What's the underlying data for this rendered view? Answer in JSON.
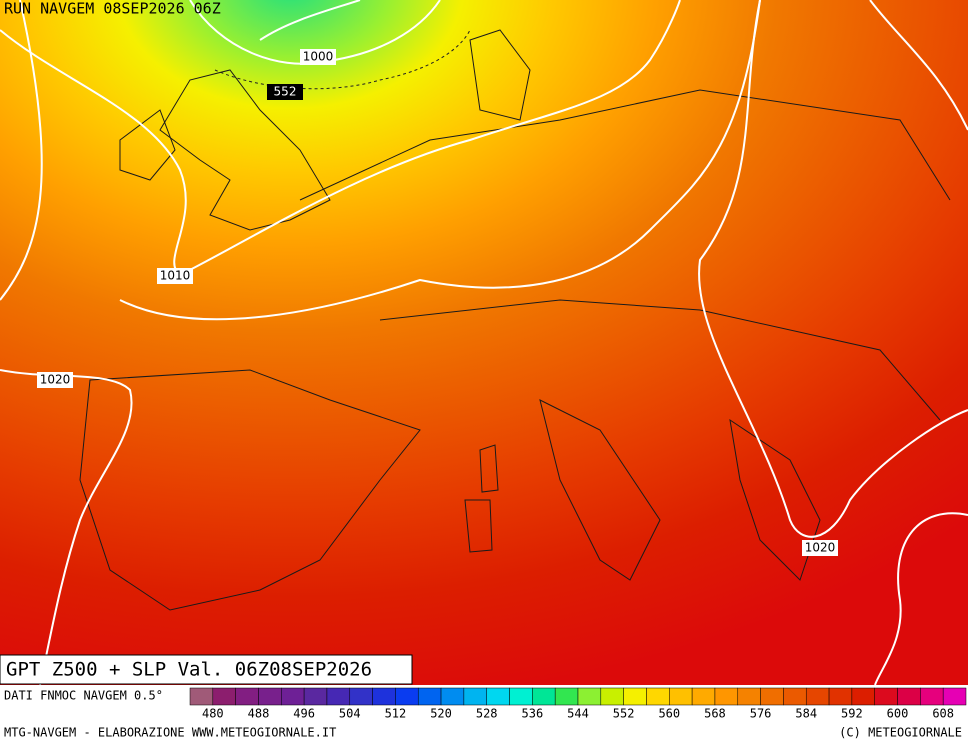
{
  "header": {
    "run": "RUN NAVGEM 08SEP2026 06Z"
  },
  "map": {
    "isobar_labels": [
      "1000",
      "552",
      "1010",
      "1020",
      "1020"
    ]
  },
  "title": "GPT Z500 + SLP Val. 06Z08SEP2026",
  "legend": {
    "source": "DATI FNMOC NAVGEM 0.5°",
    "ticks": [
      480,
      488,
      496,
      504,
      512,
      520,
      528,
      536,
      544,
      552,
      560,
      568,
      576,
      584,
      592,
      600,
      608
    ],
    "colors": [
      "#a05a78",
      "#8c1e6e",
      "#821e82",
      "#78208c",
      "#6e2096",
      "#5a28a0",
      "#4628b4",
      "#3232c8",
      "#1e32dc",
      "#0a3cf0",
      "#0064f0",
      "#008cf0",
      "#00b4f0",
      "#00d7f0",
      "#00f0d2",
      "#00e696",
      "#32e650",
      "#8cf032",
      "#c8f000",
      "#f5f000",
      "#ffd700",
      "#ffc000",
      "#ffaa00",
      "#ff9600",
      "#f58200",
      "#f06e00",
      "#eb5a00",
      "#e64600",
      "#e13200",
      "#dc1e00",
      "#dc0a1e",
      "#dc0046",
      "#e6007d",
      "#e600b4"
    ]
  },
  "footer": {
    "left": "MTG-NAVGEM - ELABORAZIONE WWW.METEOGIORNALE.IT",
    "right": "(C) METEOGIORNALE"
  }
}
